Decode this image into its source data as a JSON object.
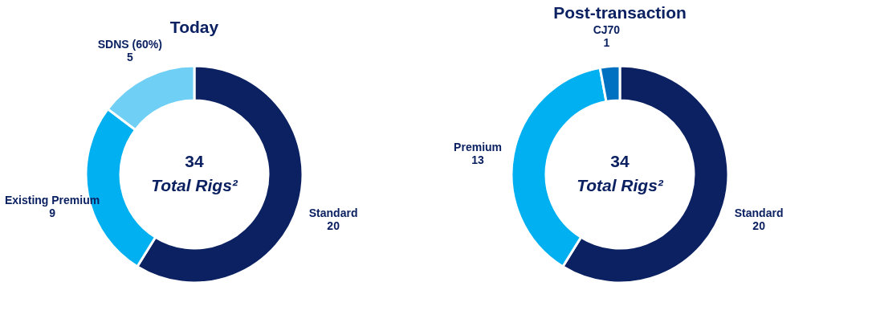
{
  "chart_data": [
    {
      "type": "donut",
      "title": "Today",
      "categories": [
        "Standard",
        "Existing Premium",
        "SDNS (60%)"
      ],
      "values": [
        20,
        9,
        5
      ],
      "colors": [
        "#0b2161",
        "#00b0f0",
        "#6fcff5"
      ],
      "data_labels": true,
      "annotations": [
        "34",
        "Total Rigs²"
      ],
      "legend": false
    },
    {
      "type": "donut",
      "title": "Post-transaction",
      "categories": [
        "Standard",
        "Premium",
        "CJ70"
      ],
      "values": [
        20,
        13,
        1
      ],
      "colors": [
        "#0b2161",
        "#00b0f0",
        "#0070c0"
      ],
      "data_labels": true,
      "annotations": [
        "34",
        "Total Rigs²"
      ],
      "legend": false
    }
  ]
}
